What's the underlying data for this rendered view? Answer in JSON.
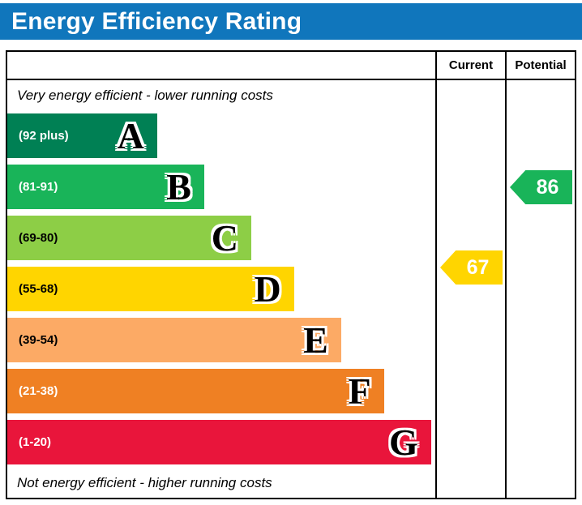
{
  "title": "Energy Efficiency Rating",
  "header": {
    "current": "Current",
    "potential": "Potential"
  },
  "notes": {
    "top": "Very energy efficient - lower running costs",
    "bottom": "Not energy efficient - higher running costs"
  },
  "bands": [
    {
      "letter": "A",
      "range_label": "(92 plus)",
      "min": 92,
      "max": 100,
      "color": "#008054",
      "text_color": "#ffffff",
      "width_pct": 35
    },
    {
      "letter": "B",
      "range_label": "(81-91)",
      "min": 81,
      "max": 91,
      "color": "#19b459",
      "text_color": "#ffffff",
      "width_pct": 46
    },
    {
      "letter": "C",
      "range_label": "(69-80)",
      "min": 69,
      "max": 80,
      "color": "#8dce46",
      "text_color": "#000000",
      "width_pct": 57
    },
    {
      "letter": "D",
      "range_label": "(55-68)",
      "min": 55,
      "max": 68,
      "color": "#ffd500",
      "text_color": "#000000",
      "width_pct": 67
    },
    {
      "letter": "E",
      "range_label": "(39-54)",
      "min": 39,
      "max": 54,
      "color": "#fcaa65",
      "text_color": "#000000",
      "width_pct": 78
    },
    {
      "letter": "F",
      "range_label": "(21-38)",
      "min": 21,
      "max": 38,
      "color": "#ef8023",
      "text_color": "#ffffff",
      "width_pct": 88
    },
    {
      "letter": "G",
      "range_label": "(1-20)",
      "min": 1,
      "max": 20,
      "color": "#e9153b",
      "text_color": "#ffffff",
      "width_pct": 99
    }
  ],
  "ratings": {
    "current": {
      "value": 67,
      "color": "#ffd500"
    },
    "potential": {
      "value": 86,
      "color": "#19b459"
    }
  },
  "colors": {
    "title_bar": "#1076bc",
    "border": "#000000"
  },
  "chart_data": {
    "type": "bar",
    "title": "Energy Efficiency Rating",
    "orientation": "horizontal",
    "categories": [
      "A",
      "B",
      "C",
      "D",
      "E",
      "F",
      "G"
    ],
    "category_ranges": [
      "(92 plus)",
      "(81-91)",
      "(69-80)",
      "(55-68)",
      "(39-54)",
      "(21-38)",
      "(1-20)"
    ],
    "band_colors": [
      "#008054",
      "#19b459",
      "#8dce46",
      "#ffd500",
      "#fcaa65",
      "#ef8023",
      "#e9153b"
    ],
    "markers": {
      "current": 67,
      "potential": 86
    },
    "marker_bands": {
      "current": "D",
      "potential": "B"
    },
    "annotations": [
      "Very energy efficient - lower running costs",
      "Not energy efficient - higher running costs"
    ],
    "grid": false,
    "legend_position": "none"
  }
}
